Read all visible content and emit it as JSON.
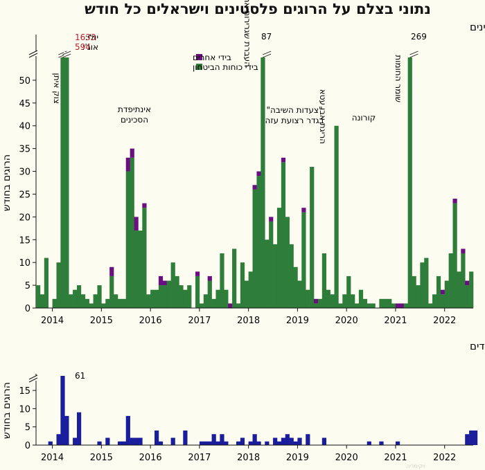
{
  "page": {
    "title": "נתוני בצלם על הרוגים פלסטינים וישראלים כל חודש",
    "watermark": "ויקיפדיה"
  },
  "chart_data": [
    {
      "type": "bar",
      "title": "פלסטינים",
      "ylabel": "הרוגים בחודש",
      "ylim": [
        0,
        55
      ],
      "y_ticks": [
        0,
        5,
        10,
        15,
        20,
        25,
        30,
        35,
        40,
        45,
        50
      ],
      "x_ticks": [
        "2014",
        "2015",
        "2016",
        "2017",
        "2018",
        "2019",
        "2020",
        "2021",
        "2022"
      ],
      "start": "2013-09",
      "end": "2022-08",
      "colors": {
        "security_forces": "#2e7d3a",
        "others": "#6b0f80"
      },
      "legend": [
        {
          "key": "others",
          "label": "בידי אחרים",
          "color": "#6b0f80"
        },
        {
          "key": "security_forces",
          "label": "בידי כוחות הביטחון",
          "color": "#2e7d3a"
        }
      ],
      "legend_position": "top-left",
      "series": [
        {
          "key": "security_forces",
          "name": "בידי כוחות הביטחון",
          "values": [
            5,
            3,
            11,
            0,
            2,
            10,
            55,
            55,
            3,
            4,
            5,
            3,
            2,
            1,
            3,
            5,
            1,
            2,
            7,
            3,
            2,
            2,
            30,
            33,
            17,
            17,
            22,
            3,
            4,
            4,
            5,
            5,
            6,
            10,
            7,
            5,
            4,
            5,
            0,
            7,
            1,
            3,
            6,
            2,
            4,
            12,
            4,
            0,
            13,
            1,
            10,
            6,
            8,
            26,
            29,
            55,
            15,
            19,
            14,
            22,
            32,
            20,
            14,
            9,
            6,
            21,
            4,
            31,
            1,
            2,
            12,
            4,
            3,
            40,
            1,
            3,
            7,
            3,
            1,
            4,
            2,
            1,
            1,
            0,
            2,
            2,
            2,
            1,
            0,
            0,
            1,
            55,
            7,
            5,
            10,
            11,
            1,
            3,
            7,
            3,
            6,
            12,
            23,
            8,
            12,
            5,
            8
          ]
        },
        {
          "key": "others",
          "name": "בידי אחרים",
          "values": [
            0,
            0,
            0,
            0,
            0,
            0,
            0,
            0,
            0,
            0,
            0,
            0,
            0,
            0,
            0,
            0,
            0,
            0,
            2,
            0,
            0,
            0,
            3,
            2,
            3,
            0,
            1,
            0,
            0,
            0,
            2,
            1,
            0,
            0,
            0,
            0,
            0,
            0,
            0,
            1,
            0,
            0,
            1,
            0,
            0,
            0,
            0,
            1,
            0,
            0,
            0,
            0,
            0,
            1,
            1,
            0,
            0,
            1,
            0,
            0,
            1,
            0,
            0,
            0,
            0,
            1,
            0,
            0,
            1,
            0,
            0,
            0,
            0,
            0,
            0,
            0,
            0,
            0,
            0,
            0,
            0,
            0,
            0,
            0,
            0,
            0,
            0,
            0,
            1,
            1,
            0,
            0,
            0,
            0,
            0,
            0,
            0,
            0,
            0,
            1,
            0,
            0,
            1,
            0,
            1,
            1,
            0,
            0
          ]
        }
      ],
      "annotations": [
        {
          "text": "צוק איתן",
          "vertical": true
        },
        {
          "text": "אינתיפדת הסכינים",
          "lines": [
            "אינתיפדת",
            "הסכינים"
          ]
        },
        {
          "text": "העברת שגרירות ארה\"ב",
          "vertical": true
        },
        {
          "text": "\"צעדות השיבה\" בגדר רצועת עזה",
          "lines": [
            "\"צעדות השיבה\"",
            "בגדר רצועת עזה"
          ]
        },
        {
          "text": "הריגת אבו עטא",
          "vertical": true
        },
        {
          "text": "קורונה",
          "lines": [
            "קורונה"
          ]
        },
        {
          "text": "שומר החומות",
          "vertical": true
        }
      ],
      "overflow_labels": {
        "jul_label": "יולי:",
        "jul_value": "1633",
        "aug_label": "אוג':",
        "aug_value": "594",
        "may_2018": "87",
        "may_2021": "269"
      }
    },
    {
      "type": "bar",
      "title": "יהודים",
      "ylabel": "הרוגים בחודש",
      "ylim": [
        0,
        19
      ],
      "y_ticks": [
        0,
        5,
        10,
        15
      ],
      "x_ticks": [
        "2014",
        "2015",
        "2016",
        "2017",
        "2018",
        "2019",
        "2020",
        "2021",
        "2022"
      ],
      "start": "2013-09",
      "end": "2022-08",
      "color": "#1a1e9c",
      "overflow_label": "61",
      "values": [
        0,
        0,
        0,
        1,
        0,
        3,
        19,
        8,
        0,
        2,
        9,
        0,
        0,
        0,
        0,
        1,
        0,
        2,
        0,
        0,
        1,
        1,
        8,
        2,
        2,
        2,
        0,
        0,
        0,
        4,
        1,
        0,
        0,
        2,
        0,
        0,
        4,
        0,
        0,
        0,
        1,
        1,
        1,
        3,
        1,
        3,
        1,
        0,
        0,
        1,
        2,
        0,
        1,
        3,
        1,
        0,
        1,
        0,
        2,
        1,
        2,
        3,
        2,
        1,
        2,
        0,
        3,
        0,
        0,
        0,
        2,
        0,
        0,
        0,
        0,
        0,
        0,
        0,
        0,
        0,
        0,
        1,
        0,
        0,
        1,
        0,
        0,
        0,
        1,
        0,
        0,
        0,
        0,
        0,
        0,
        0,
        0,
        0,
        0,
        0,
        0,
        0,
        0,
        0,
        0,
        3,
        4,
        4
      ]
    }
  ]
}
